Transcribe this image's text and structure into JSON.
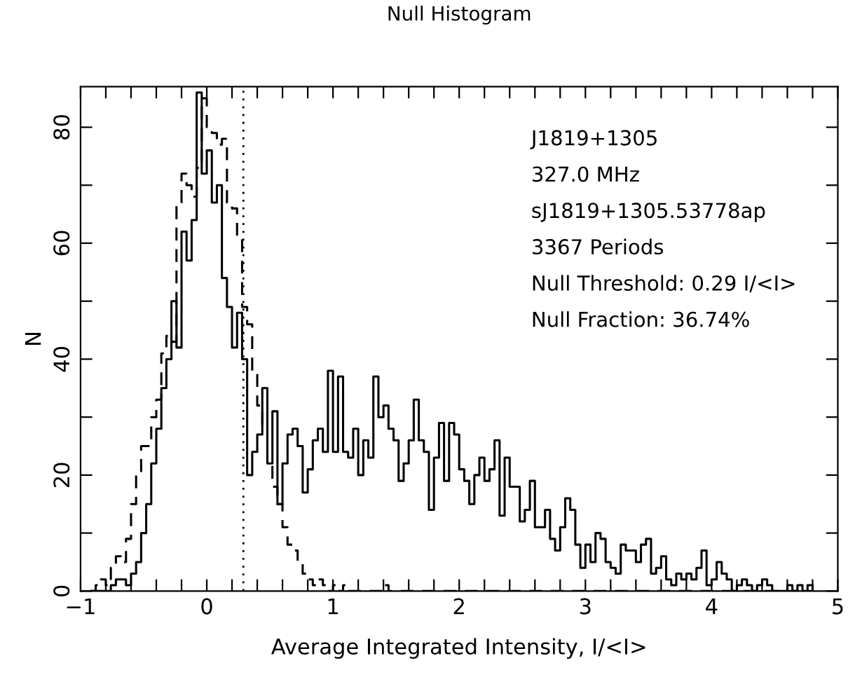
{
  "chart_data": {
    "type": "histogram",
    "title": "Null Histogram",
    "xlabel": "Average Integrated Intensity, I/<I>",
    "ylabel": "N",
    "bins": [
      -0.92,
      -0.88,
      -0.84,
      -0.8,
      -0.76,
      -0.72,
      -0.68,
      -0.64,
      -0.6,
      -0.56,
      -0.52,
      -0.48,
      -0.44,
      -0.4,
      -0.36,
      -0.32,
      -0.28,
      -0.24,
      -0.2,
      -0.16,
      -0.12,
      -0.08,
      -0.04,
      0,
      0.04,
      0.08,
      0.12,
      0.16,
      0.2,
      0.24,
      0.28,
      0.32,
      0.36,
      0.4,
      0.44,
      0.48,
      0.52,
      0.56,
      0.6,
      0.64,
      0.68,
      0.72,
      0.76,
      0.8,
      0.84,
      0.88,
      0.92,
      0.96,
      1,
      1.04,
      1.08,
      1.12,
      1.16,
      1.2,
      1.24,
      1.28,
      1.32,
      1.36,
      1.4,
      1.44,
      1.48,
      1.52,
      1.56,
      1.6,
      1.64,
      1.68,
      1.72,
      1.76,
      1.8,
      1.84,
      1.88,
      1.92,
      1.96,
      2,
      2.04,
      2.08,
      2.12,
      2.16,
      2.2,
      2.24,
      2.28,
      2.32,
      2.36,
      2.4,
      2.44,
      2.48,
      2.52,
      2.56,
      2.6,
      2.64,
      2.68,
      2.72,
      2.76,
      2.8,
      2.84,
      2.88,
      2.92,
      2.96,
      3,
      3.04,
      3.08,
      3.12,
      3.16,
      3.2,
      3.24,
      3.28,
      3.32,
      3.36,
      3.4,
      3.44,
      3.48,
      3.52,
      3.56,
      3.6,
      3.64,
      3.68,
      3.72,
      3.76,
      3.8,
      3.84,
      3.88,
      3.92,
      3.96,
      4,
      4.04,
      4.08,
      4.12,
      4.16,
      4.2,
      4.24,
      4.28,
      4.32,
      4.36,
      4.4,
      4.44,
      4.48,
      4.52,
      4.56,
      4.6,
      4.64,
      4.68,
      4.72,
      4.76,
      4.8
    ],
    "series": [
      {
        "color": "#000000",
        "line_style": "solid",
        "values": [
          0,
          0,
          0,
          0,
          1,
          2,
          2,
          1,
          3,
          5,
          10,
          15,
          22,
          28,
          35,
          40,
          50,
          42,
          62,
          57,
          64,
          86,
          72,
          76,
          67,
          70,
          54,
          49,
          42,
          48,
          40,
          20,
          24,
          27,
          35,
          22,
          31,
          15,
          22,
          27,
          28,
          25,
          17,
          21,
          26,
          28,
          24,
          38,
          24,
          37,
          24,
          23,
          28,
          20,
          26,
          23,
          37,
          30,
          32,
          28,
          26,
          19,
          22,
          26,
          33,
          26,
          24,
          14,
          23,
          29,
          19,
          29,
          27,
          21,
          19,
          15,
          20,
          23,
          19,
          21,
          26,
          13,
          23,
          18,
          18,
          12,
          14,
          19,
          11,
          11,
          14,
          9,
          7,
          11,
          16,
          14,
          8,
          4,
          8,
          5,
          10,
          9,
          5,
          4,
          3,
          8,
          7,
          7,
          5,
          8,
          9,
          3,
          4,
          6,
          2,
          1,
          3,
          2,
          3,
          2,
          4,
          7,
          1,
          2,
          5,
          3,
          2,
          0,
          1,
          2,
          1,
          0,
          1,
          2,
          1,
          0,
          0,
          0,
          1,
          0,
          1,
          0,
          1
        ]
      },
      {
        "color": "#000000",
        "line_style": "dashed",
        "values": [
          0,
          1,
          2,
          1,
          4,
          6,
          5,
          9,
          15,
          20,
          25,
          25,
          30,
          33,
          41,
          44,
          43,
          67,
          72,
          70,
          68,
          73,
          85,
          80,
          79,
          77,
          78,
          67,
          66,
          61,
          49,
          46,
          38,
          32,
          28,
          22,
          18,
          15,
          11,
          8,
          7,
          5,
          3,
          2,
          1,
          2,
          1,
          0,
          1,
          0,
          1,
          0,
          0,
          0,
          0,
          0,
          0,
          0,
          1,
          0,
          0,
          0,
          0,
          0,
          0,
          0,
          0,
          0,
          0,
          0,
          0,
          0,
          0,
          0,
          0,
          0,
          0,
          0,
          0,
          0,
          0,
          0,
          0,
          0,
          0,
          0,
          0,
          0,
          0,
          0,
          0,
          0,
          0,
          0,
          0,
          0,
          0,
          0,
          0,
          0,
          0,
          0,
          0,
          0,
          0,
          0,
          0,
          0,
          0,
          0,
          0,
          0,
          0,
          0,
          0,
          0,
          0,
          0,
          0,
          0,
          0,
          0,
          0,
          0,
          0,
          0,
          0,
          0,
          0,
          0,
          0,
          0,
          0,
          0,
          0,
          0,
          0,
          0,
          0,
          0,
          0,
          0,
          0
        ]
      }
    ],
    "ref_lines": [
      {
        "axis": "x",
        "value": 0.29,
        "line_style": "dotted",
        "color": "#000000"
      }
    ],
    "annotations": [
      "J1819+1305",
      "327.0 MHz",
      "sJ1819+1305.53778ap",
      "3367 Periods",
      "Null Threshold: 0.29 I/<I>",
      "Null Fraction: 36.74%"
    ],
    "xlim": [
      -1,
      5
    ],
    "ylim": [
      0,
      87
    ],
    "xticks": [
      {
        "value": -1,
        "label": "−1"
      },
      {
        "value": -0.8,
        "label": null
      },
      {
        "value": -0.6,
        "label": null
      },
      {
        "value": -0.4,
        "label": null
      },
      {
        "value": -0.2,
        "label": null
      },
      0,
      {
        "value": 0.2,
        "label": null
      },
      {
        "value": 0.4,
        "label": null
      },
      {
        "value": 0.6,
        "label": null
      },
      {
        "value": 0.8,
        "label": null
      },
      1,
      {
        "value": 1.2,
        "label": null
      },
      {
        "value": 1.4,
        "label": null
      },
      {
        "value": 1.6,
        "label": null
      },
      {
        "value": 1.8,
        "label": null
      },
      2,
      {
        "value": 2.2,
        "label": null
      },
      {
        "value": 2.4,
        "label": null
      },
      {
        "value": 2.6,
        "label": null
      },
      {
        "value": 2.8,
        "label": null
      },
      3,
      {
        "value": 3.2,
        "label": null
      },
      {
        "value": 3.4,
        "label": null
      },
      {
        "value": 3.6,
        "label": null
      },
      {
        "value": 3.8,
        "label": null
      },
      4,
      {
        "value": 4.2,
        "label": null
      },
      {
        "value": 4.4,
        "label": null
      },
      {
        "value": 4.6,
        "label": null
      },
      {
        "value": 4.8,
        "label": null
      },
      5
    ],
    "yticks": [
      0,
      {
        "value": 10,
        "label": null
      },
      20,
      {
        "value": 30,
        "label": null
      },
      40,
      {
        "value": 50,
        "label": null
      },
      60,
      {
        "value": 70,
        "label": null
      },
      80
    ],
    "grid": false,
    "legend": false
  }
}
